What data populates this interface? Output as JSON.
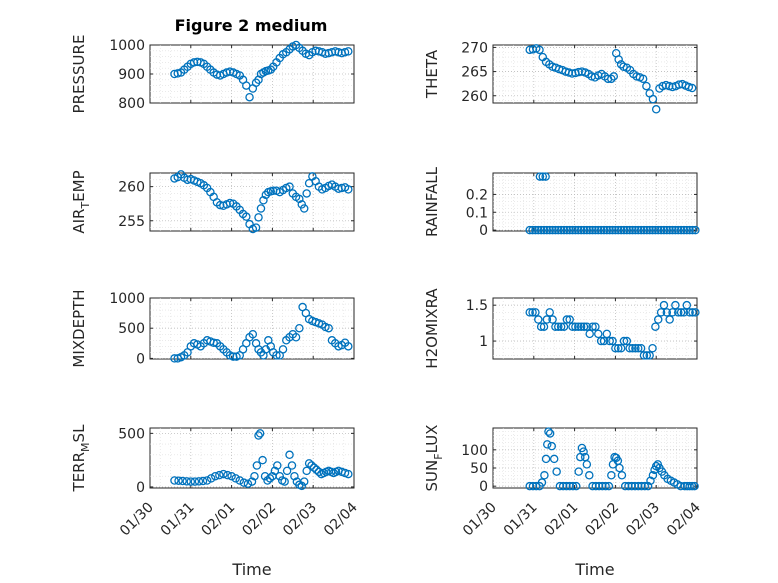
{
  "figure": {
    "title": "Figure 2 medium",
    "accent": "#0072BD"
  },
  "chart_data": [
    {
      "id": "pressure",
      "type": "scatter",
      "title": "Figure 2 medium",
      "ylabel": "PRESSURE",
      "ylabel_main": "PRESSURE",
      "ylabel_sub": "",
      "xlabel": "",
      "xlim": [
        0,
        5
      ],
      "ylim": [
        800,
        1000
      ],
      "yticks": [
        800,
        900,
        1000
      ],
      "ytick_labels": [
        "800",
        "900",
        "1000"
      ],
      "xticks": [
        0,
        1,
        2,
        3,
        4,
        5
      ],
      "xtick_labels": [],
      "grid": true,
      "minor_grid": true,
      "x": [
        0.6,
        0.68,
        0.76,
        0.84,
        0.92,
        1.0,
        1.08,
        1.16,
        1.24,
        1.32,
        1.4,
        1.48,
        1.56,
        1.64,
        1.72,
        1.8,
        1.88,
        1.96,
        2.04,
        2.12,
        2.2,
        2.28,
        2.36,
        2.44,
        2.52,
        2.6,
        2.66,
        2.72,
        2.78,
        2.84,
        2.9,
        2.96,
        3.02,
        3.1,
        3.18,
        3.26,
        3.34,
        3.42,
        3.5,
        3.58,
        3.66,
        3.74,
        3.82,
        3.9,
        3.98,
        4.06,
        4.14,
        4.22,
        4.3,
        4.38,
        4.46,
        4.54,
        4.62,
        4.7,
        4.78,
        4.86
      ],
      "y": [
        900,
        902,
        905,
        915,
        925,
        935,
        940,
        942,
        940,
        935,
        925,
        915,
        905,
        898,
        895,
        900,
        905,
        908,
        905,
        900,
        895,
        880,
        860,
        820,
        850,
        870,
        880,
        900,
        905,
        910,
        912,
        915,
        925,
        940,
        955,
        968,
        975,
        985,
        995,
        1000,
        990,
        980,
        970,
        965,
        975,
        980,
        978,
        975,
        970,
        972,
        975,
        978,
        975,
        972,
        975,
        978
      ]
    },
    {
      "id": "theta",
      "type": "scatter",
      "ylabel": "THETA",
      "ylabel_main": "THETA",
      "ylabel_sub": "",
      "xlabel": "",
      "xlim": [
        0,
        5
      ],
      "ylim": [
        258.5,
        270.5
      ],
      "yticks": [
        260,
        265,
        270
      ],
      "ytick_labels": [
        "260",
        "265",
        "270"
      ],
      "xticks": [
        0,
        1,
        2,
        3,
        4,
        5
      ],
      "xtick_labels": [],
      "grid": true,
      "minor_grid": true,
      "x": [
        0.9,
        0.98,
        1.06,
        1.14,
        1.22,
        1.3,
        1.38,
        1.46,
        1.54,
        1.62,
        1.7,
        1.78,
        1.86,
        1.94,
        2.02,
        2.1,
        2.18,
        2.26,
        2.34,
        2.42,
        2.5,
        2.58,
        2.66,
        2.74,
        2.82,
        2.9,
        2.96,
        3.02,
        3.08,
        3.14,
        3.2,
        3.28,
        3.36,
        3.44,
        3.52,
        3.6,
        3.68,
        3.76,
        3.84,
        3.92,
        4.0,
        4.08,
        4.16,
        4.24,
        4.32,
        4.4,
        4.48,
        4.56,
        4.64,
        4.72,
        4.8,
        4.88
      ],
      "y": [
        269.5,
        269.6,
        269.8,
        269.5,
        268,
        267,
        266.5,
        266,
        265.8,
        265.5,
        265.3,
        265,
        264.8,
        264.6,
        264.7,
        264.9,
        265,
        264.8,
        264.5,
        264,
        263.8,
        264.2,
        264.5,
        264,
        263.5,
        263.5,
        264,
        268.8,
        267.5,
        266.5,
        266,
        265.8,
        265.3,
        264.5,
        264,
        263.8,
        263.5,
        262,
        260.5,
        259.3,
        257.2,
        261.5,
        262,
        262.2,
        262,
        261.8,
        262,
        262.3,
        262.4,
        262.1,
        261.8,
        261.6
      ]
    },
    {
      "id": "air_temp",
      "type": "scatter",
      "ylabel": "AIR_TEMP",
      "ylabel_main": "AIR",
      "ylabel_sub": "T",
      "ylabel_rest": "EMP",
      "xlabel": "",
      "xlim": [
        0,
        5
      ],
      "ylim": [
        253.5,
        262
      ],
      "yticks": [
        255,
        260
      ],
      "ytick_labels": [
        "255",
        "260"
      ],
      "xticks": [
        0,
        1,
        2,
        3,
        4,
        5
      ],
      "xtick_labels": [],
      "grid": true,
      "minor_grid": true,
      "x": [
        0.6,
        0.68,
        0.76,
        0.84,
        0.92,
        1.0,
        1.08,
        1.16,
        1.24,
        1.32,
        1.4,
        1.48,
        1.56,
        1.64,
        1.72,
        1.8,
        1.88,
        1.96,
        2.04,
        2.12,
        2.2,
        2.28,
        2.36,
        2.44,
        2.52,
        2.6,
        2.66,
        2.72,
        2.78,
        2.84,
        2.9,
        2.96,
        3.02,
        3.1,
        3.18,
        3.26,
        3.34,
        3.42,
        3.5,
        3.58,
        3.66,
        3.72,
        3.78,
        3.84,
        3.9,
        3.98,
        4.06,
        4.14,
        4.22,
        4.3,
        4.38,
        4.46,
        4.54,
        4.62,
        4.7,
        4.78,
        4.86
      ],
      "y": [
        261.2,
        261.4,
        261.8,
        261.3,
        261,
        261.1,
        260.9,
        260.7,
        260.5,
        260.2,
        259.8,
        259.2,
        258.5,
        257.7,
        257.3,
        257.2,
        257.4,
        257.6,
        257.5,
        257.1,
        256.6,
        256,
        255.6,
        254.5,
        253.8,
        254,
        255.5,
        256.8,
        258,
        258.8,
        259.2,
        259.3,
        259.4,
        259.4,
        259.2,
        259.5,
        259.8,
        260,
        259,
        258.5,
        258.2,
        257.4,
        256.8,
        259,
        260.5,
        261.5,
        260.8,
        260,
        259.6,
        259.8,
        260.1,
        260.3,
        260,
        259.7,
        259.8,
        259.9,
        259.6
      ]
    },
    {
      "id": "rainfall",
      "type": "scatter",
      "ylabel": "RAINFALL",
      "ylabel_main": "RAINFALL",
      "ylabel_sub": "",
      "xlabel": "",
      "xlim": [
        0,
        5
      ],
      "ylim": [
        -0.005,
        0.32
      ],
      "yticks": [
        0,
        0.1,
        0.2
      ],
      "ytick_labels": [
        "0",
        "0.1",
        "0.2"
      ],
      "xticks": [
        0,
        1,
        2,
        3,
        4,
        5
      ],
      "xtick_labels": [],
      "grid": true,
      "minor_grid": true,
      "x": [
        0.9,
        0.97,
        1.04,
        1.11,
        1.18,
        1.25,
        1.32,
        1.39,
        1.46,
        1.53,
        1.6,
        1.67,
        1.74,
        1.81,
        1.88,
        1.95,
        2.02,
        2.09,
        2.16,
        2.23,
        2.3,
        2.37,
        2.44,
        2.51,
        2.58,
        2.65,
        2.72,
        2.79,
        2.86,
        2.93,
        3.0,
        3.07,
        3.14,
        3.21,
        3.28,
        3.35,
        3.42,
        3.49,
        3.56,
        3.63,
        3.7,
        3.77,
        3.84,
        3.91,
        3.98,
        4.05,
        4.12,
        4.19,
        4.26,
        4.33,
        4.4,
        4.47,
        4.54,
        4.61,
        4.68,
        4.75,
        4.82,
        4.89,
        4.96,
        1.15,
        1.22,
        1.29
      ],
      "y": [
        0,
        0,
        0,
        0,
        0,
        0,
        0,
        0,
        0,
        0,
        0,
        0,
        0,
        0,
        0,
        0,
        0,
        0,
        0,
        0,
        0,
        0,
        0,
        0,
        0,
        0,
        0,
        0,
        0,
        0,
        0,
        0,
        0,
        0,
        0,
        0,
        0,
        0,
        0,
        0,
        0,
        0,
        0,
        0,
        0,
        0,
        0,
        0,
        0,
        0,
        0,
        0,
        0,
        0,
        0,
        0,
        0,
        0,
        0,
        0.3,
        0.3,
        0.3
      ]
    },
    {
      "id": "mixdepth",
      "type": "scatter",
      "ylabel": "MIXDEPTH",
      "ylabel_main": "MIXDEPTH",
      "ylabel_sub": "",
      "xlabel": "",
      "xlim": [
        0,
        5
      ],
      "ylim": [
        -10,
        1000
      ],
      "yticks": [
        0,
        500,
        1000
      ],
      "ytick_labels": [
        "0",
        "500",
        "1000"
      ],
      "xticks": [
        0,
        1,
        2,
        3,
        4,
        5
      ],
      "xtick_labels": [],
      "grid": true,
      "minor_grid": true,
      "x": [
        0.6,
        0.68,
        0.76,
        0.84,
        0.92,
        1.0,
        1.08,
        1.16,
        1.24,
        1.32,
        1.4,
        1.48,
        1.56,
        1.64,
        1.72,
        1.8,
        1.88,
        1.96,
        2.04,
        2.12,
        2.2,
        2.28,
        2.36,
        2.44,
        2.52,
        2.6,
        2.66,
        2.72,
        2.78,
        2.84,
        2.9,
        2.96,
        3.02,
        3.1,
        3.18,
        3.26,
        3.34,
        3.42,
        3.5,
        3.58,
        3.66,
        3.74,
        3.82,
        3.9,
        3.98,
        4.06,
        4.14,
        4.22,
        4.3,
        4.38,
        4.46,
        4.54,
        4.62,
        4.7,
        4.78,
        4.86
      ],
      "y": [
        0,
        0,
        20,
        50,
        100,
        200,
        250,
        230,
        200,
        250,
        300,
        280,
        260,
        250,
        200,
        150,
        100,
        50,
        30,
        30,
        50,
        150,
        250,
        350,
        400,
        250,
        150,
        100,
        50,
        150,
        300,
        200,
        100,
        50,
        50,
        150,
        300,
        350,
        400,
        350,
        500,
        850,
        750,
        650,
        620,
        600,
        580,
        560,
        520,
        500,
        300,
        250,
        200,
        220,
        260,
        200
      ]
    },
    {
      "id": "h2omixra",
      "type": "scatter",
      "ylabel": "H2OMIXRA",
      "ylabel_main": "H2OMIXRA",
      "ylabel_sub": "",
      "xlabel": "",
      "xlim": [
        0,
        5
      ],
      "ylim": [
        0.75,
        1.6
      ],
      "yticks": [
        1,
        1.5
      ],
      "ytick_labels": [
        "1",
        "1.5"
      ],
      "xticks": [
        0,
        1,
        2,
        3,
        4,
        5
      ],
      "xtick_labels": [],
      "grid": true,
      "minor_grid": true,
      "x": [
        0.9,
        0.97,
        1.04,
        1.11,
        1.18,
        1.25,
        1.32,
        1.39,
        1.46,
        1.53,
        1.6,
        1.67,
        1.74,
        1.81,
        1.88,
        1.95,
        2.02,
        2.09,
        2.16,
        2.23,
        2.3,
        2.37,
        2.44,
        2.51,
        2.58,
        2.65,
        2.72,
        2.79,
        2.86,
        2.93,
        3.0,
        3.07,
        3.14,
        3.21,
        3.28,
        3.35,
        3.42,
        3.49,
        3.56,
        3.63,
        3.7,
        3.77,
        3.84,
        3.91,
        3.98,
        4.05,
        4.12,
        4.19,
        4.26,
        4.33,
        4.4,
        4.47,
        4.54,
        4.61,
        4.68,
        4.75,
        4.82,
        4.89,
        4.96
      ],
      "y": [
        1.4,
        1.4,
        1.4,
        1.3,
        1.2,
        1.2,
        1.3,
        1.4,
        1.3,
        1.2,
        1.2,
        1.2,
        1.2,
        1.3,
        1.3,
        1.2,
        1.2,
        1.2,
        1.2,
        1.2,
        1.2,
        1.1,
        1.2,
        1.2,
        1.1,
        1.0,
        1.0,
        1.1,
        1.0,
        1.0,
        0.9,
        0.9,
        0.9,
        1.0,
        1.0,
        0.9,
        0.9,
        0.9,
        0.9,
        0.9,
        0.8,
        0.8,
        0.8,
        0.9,
        1.2,
        1.3,
        1.4,
        1.5,
        1.4,
        1.3,
        1.4,
        1.5,
        1.4,
        1.4,
        1.4,
        1.5,
        1.4,
        1.4,
        1.4
      ]
    },
    {
      "id": "terr_msl",
      "type": "scatter",
      "ylabel": "TERR_MSL",
      "ylabel_main": "TERR",
      "ylabel_sub": "M",
      "ylabel_rest": "SL",
      "xlabel": "Time",
      "xlim": [
        0,
        5
      ],
      "ylim": [
        -10,
        550
      ],
      "yticks": [
        0,
        500
      ],
      "ytick_labels": [
        "0",
        "500"
      ],
      "xticks": [
        0,
        1,
        2,
        3,
        4,
        5
      ],
      "xtick_labels": [
        "01/30",
        "01/31",
        "02/01",
        "02/02",
        "02/03",
        "02/04"
      ],
      "grid": true,
      "minor_grid": true,
      "x": [
        0.6,
        0.7,
        0.8,
        0.9,
        1.0,
        1.1,
        1.2,
        1.3,
        1.4,
        1.5,
        1.6,
        1.7,
        1.8,
        1.9,
        2.0,
        2.1,
        2.2,
        2.3,
        2.4,
        2.5,
        2.56,
        2.62,
        2.66,
        2.7,
        2.76,
        2.82,
        2.88,
        2.94,
        3.0,
        3.06,
        3.12,
        3.18,
        3.24,
        3.3,
        3.36,
        3.42,
        3.48,
        3.54,
        3.6,
        3.66,
        3.72,
        3.78,
        3.84,
        3.9,
        3.96,
        4.02,
        4.08,
        4.14,
        4.2,
        4.26,
        4.32,
        4.38,
        4.44,
        4.5,
        4.56,
        4.62,
        4.7,
        4.78,
        4.86
      ],
      "y": [
        60,
        58,
        55,
        52,
        50,
        50,
        52,
        55,
        60,
        80,
        100,
        110,
        120,
        110,
        100,
        80,
        60,
        40,
        30,
        50,
        100,
        200,
        480,
        500,
        250,
        100,
        60,
        80,
        100,
        150,
        200,
        100,
        60,
        50,
        150,
        300,
        200,
        100,
        50,
        20,
        10,
        50,
        150,
        220,
        200,
        180,
        160,
        140,
        120,
        130,
        140,
        150,
        140,
        130,
        140,
        150,
        140,
        130,
        120
      ]
    },
    {
      "id": "sun_flux",
      "type": "scatter",
      "ylabel": "SUN_FLUX",
      "ylabel_main": "SUN",
      "ylabel_sub": "F",
      "ylabel_rest": "LUX",
      "xlabel": "Time",
      "xlim": [
        0,
        5
      ],
      "ylim": [
        -5,
        160
      ],
      "yticks": [
        0,
        50,
        100
      ],
      "ytick_labels": [
        "0",
        "50",
        "100"
      ],
      "xticks": [
        0,
        1,
        2,
        3,
        4,
        5
      ],
      "xtick_labels": [
        "01/30",
        "01/31",
        "02/01",
        "02/02",
        "02/03",
        "02/04"
      ],
      "grid": true,
      "minor_grid": true,
      "x": [
        0.9,
        0.98,
        1.06,
        1.14,
        1.2,
        1.26,
        1.3,
        1.33,
        1.36,
        1.4,
        1.44,
        1.5,
        1.56,
        1.64,
        1.72,
        1.8,
        1.88,
        1.96,
        2.04,
        2.1,
        2.14,
        2.18,
        2.22,
        2.26,
        2.3,
        2.36,
        2.44,
        2.52,
        2.6,
        2.68,
        2.76,
        2.84,
        2.9,
        2.94,
        2.98,
        3.02,
        3.06,
        3.1,
        3.16,
        3.24,
        3.32,
        3.4,
        3.48,
        3.56,
        3.64,
        3.72,
        3.8,
        3.86,
        3.92,
        3.96,
        4.0,
        4.04,
        4.08,
        4.14,
        4.2,
        4.28,
        4.36,
        4.44,
        4.52,
        4.6,
        4.7,
        4.76,
        4.82,
        4.88,
        4.94
      ],
      "y": [
        0,
        0,
        0,
        0,
        10,
        30,
        75,
        115,
        150,
        145,
        110,
        75,
        40,
        0,
        0,
        0,
        0,
        0,
        0,
        40,
        80,
        105,
        95,
        80,
        60,
        30,
        0,
        0,
        0,
        0,
        0,
        0,
        30,
        60,
        80,
        78,
        70,
        50,
        30,
        0,
        0,
        0,
        0,
        0,
        0,
        0,
        0,
        15,
        30,
        45,
        55,
        60,
        50,
        40,
        30,
        20,
        15,
        10,
        5,
        0,
        0,
        0,
        0,
        0,
        0
      ]
    }
  ]
}
